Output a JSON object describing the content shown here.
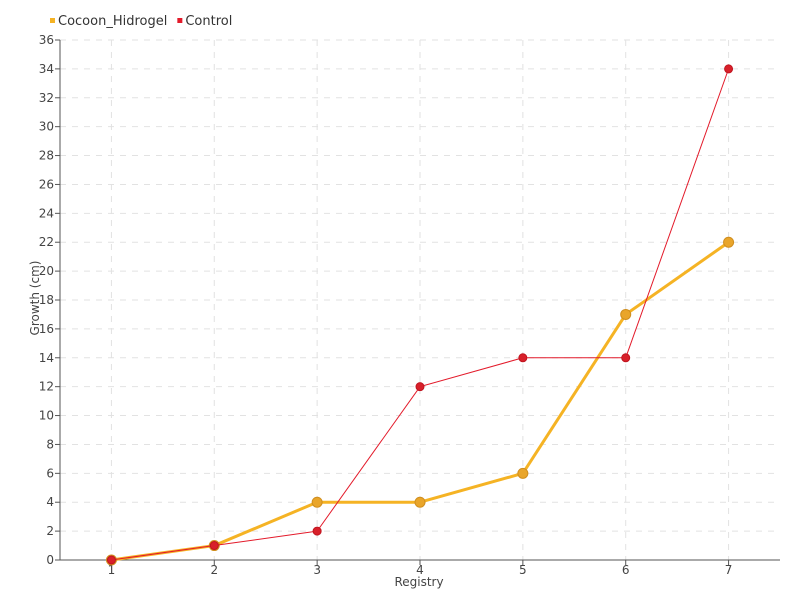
{
  "chart_data": {
    "type": "line",
    "title": "",
    "xlabel": "Registry",
    "ylabel": "Growth (cm)",
    "categories": [
      "1",
      "2",
      "3",
      "4",
      "5",
      "6",
      "7"
    ],
    "ylim": [
      0,
      36
    ],
    "y_ticks": [
      0,
      2,
      4,
      6,
      8,
      10,
      12,
      14,
      16,
      18,
      20,
      22,
      24,
      26,
      28,
      30,
      32,
      34,
      36
    ],
    "grid": true,
    "legend_position": "top-left",
    "series": [
      {
        "name": "Cocoon_Hidrogel",
        "color": "#f5b324",
        "marker_color": "#e9a52a",
        "values": [
          0,
          1,
          4,
          4,
          6,
          17,
          22
        ]
      },
      {
        "name": "Control",
        "color": "#e31a2a",
        "marker_color": "#d8202a",
        "values": [
          0,
          1,
          2,
          12,
          14,
          14,
          34
        ]
      }
    ]
  }
}
